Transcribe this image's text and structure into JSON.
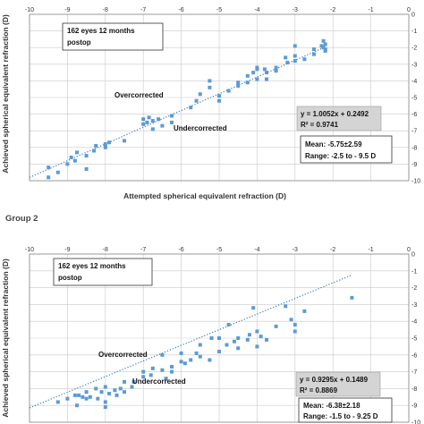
{
  "page": {
    "group_label": "Group 2"
  },
  "colors": {
    "points": "#5b9bd5",
    "trend": "#3a78b8",
    "grid": "#c9c9c9",
    "eq_box": "#d4d4d4"
  },
  "chart_data": [
    {
      "type": "scatter",
      "xlabel": "Attempted spherical equivalent refraction (D)",
      "ylabel": "Achieved spherical equivalent refraction (D)",
      "xlim": [
        -10,
        0
      ],
      "ylim": [
        -10,
        0
      ],
      "xticks": [
        "-10",
        "-9",
        "-8",
        "-7",
        "-6",
        "-5",
        "-4",
        "-3",
        "-2",
        "-1",
        "0"
      ],
      "yticks": [
        "0",
        "-1",
        "-2",
        "-3",
        "-4",
        "-5",
        "-6",
        "-7",
        "-8",
        "-9",
        "-10"
      ],
      "grid": true,
      "annotations": {
        "header_line1": "162 eyes 12 months",
        "header_line2": "postop",
        "over": "Overcorrected",
        "under": "Undercorrected",
        "eq": "y = 1.0052x + 0.2492",
        "r2": "R² = 0.9741",
        "mean": "Mean: -5.75±2.59",
        "range": "Range: -2.5 to - 9.5 D"
      },
      "trendline": {
        "slope": 1.0052,
        "intercept": 0.2492,
        "x_range": [
          -10,
          -2.2
        ]
      },
      "points": [
        [
          -9.5,
          -9.2
        ],
        [
          -9.5,
          -9.8
        ],
        [
          -9.25,
          -9.5
        ],
        [
          -9.0,
          -9.0
        ],
        [
          -8.9,
          -8.6
        ],
        [
          -8.8,
          -8.8
        ],
        [
          -8.75,
          -8.3
        ],
        [
          -8.5,
          -8.5
        ],
        [
          -8.5,
          -9.3
        ],
        [
          -8.3,
          -8.2
        ],
        [
          -8.25,
          -7.9
        ],
        [
          -8.0,
          -8.0
        ],
        [
          -8.0,
          -7.8
        ],
        [
          -7.9,
          -7.7
        ],
        [
          -7.5,
          -7.6
        ],
        [
          -7.0,
          -6.3
        ],
        [
          -7.0,
          -6.6
        ],
        [
          -6.9,
          -6.5
        ],
        [
          -6.85,
          -6.2
        ],
        [
          -6.75,
          -6.4
        ],
        [
          -6.75,
          -6.9
        ],
        [
          -6.6,
          -6.3
        ],
        [
          -6.5,
          -6.7
        ],
        [
          -6.25,
          -6.5
        ],
        [
          -6.25,
          -6.1
        ],
        [
          -5.75,
          -5.6
        ],
        [
          -5.6,
          -5.2
        ],
        [
          -5.5,
          -4.8
        ],
        [
          -5.25,
          -4.0
        ],
        [
          -5.25,
          -4.4
        ],
        [
          -5.0,
          -4.9
        ],
        [
          -5.0,
          -5.2
        ],
        [
          -4.75,
          -4.6
        ],
        [
          -4.5,
          -4.3
        ],
        [
          -4.5,
          -4.1
        ],
        [
          -4.25,
          -4.1
        ],
        [
          -4.25,
          -3.7
        ],
        [
          -4.1,
          -3.5
        ],
        [
          -4.0,
          -3.2
        ],
        [
          -4.0,
          -3.9
        ],
        [
          -4.0,
          -3.3
        ],
        [
          -3.8,
          -3.3
        ],
        [
          -3.75,
          -3.9
        ],
        [
          -3.75,
          -3.5
        ],
        [
          -3.5,
          -3.4
        ],
        [
          -3.5,
          -3.2
        ],
        [
          -3.25,
          -2.6
        ],
        [
          -3.2,
          -2.9
        ],
        [
          -3.0,
          -2.8
        ],
        [
          -3.0,
          -1.9
        ],
        [
          -3.0,
          -2.5
        ],
        [
          -2.75,
          -2.7
        ],
        [
          -2.5,
          -2.1
        ],
        [
          -2.5,
          -2.4
        ],
        [
          -2.3,
          -1.9
        ],
        [
          -2.25,
          -2.0
        ],
        [
          -2.25,
          -1.6
        ],
        [
          -2.2,
          -2.2
        ],
        [
          -2.2,
          -2.1
        ],
        [
          -2.2,
          -1.8
        ]
      ]
    },
    {
      "type": "scatter",
      "xlabel": "",
      "ylabel": "Achieved spherical equivalent refraction (D)",
      "xlim": [
        -10,
        0
      ],
      "ylim": [
        -10,
        0
      ],
      "xticks": [
        "-10",
        "-9",
        "-8",
        "-7",
        "-6",
        "-5",
        "-4",
        "-3",
        "-2",
        "-1",
        "0"
      ],
      "yticks": [
        "0",
        "-1",
        "-2",
        "-3",
        "-4",
        "-5",
        "-6",
        "-7",
        "-8",
        "-9",
        "-10"
      ],
      "grid": true,
      "annotations": {
        "header_line1": "162 eyes 12 months",
        "header_line2": "postop",
        "over": "Overcorrected",
        "under": "Undercorrected",
        "eq": "y = 0.9295x + 0.1489",
        "r2": "R² = 0.8869",
        "mean": "Mean: -6.38±2.18",
        "range": "Range: -1.5 to - 9.25 D"
      },
      "trendline": {
        "slope": 0.9295,
        "intercept": 0.1489,
        "x_range": [
          -10,
          -1.5
        ]
      },
      "points": [
        [
          -9.25,
          -8.8
        ],
        [
          -9.0,
          -8.6
        ],
        [
          -8.8,
          -8.4
        ],
        [
          -8.75,
          -9.0
        ],
        [
          -8.7,
          -8.4
        ],
        [
          -8.6,
          -8.5
        ],
        [
          -8.5,
          -8.2
        ],
        [
          -8.5,
          -8.6
        ],
        [
          -8.4,
          -8.5
        ],
        [
          -8.25,
          -8.0
        ],
        [
          -8.2,
          -8.6
        ],
        [
          -8.1,
          -8.2
        ],
        [
          -8.0,
          -7.9
        ],
        [
          -8.0,
          -8.8
        ],
        [
          -8.0,
          -9.1
        ],
        [
          -7.9,
          -8.3
        ],
        [
          -7.75,
          -8.1
        ],
        [
          -7.7,
          -8.4
        ],
        [
          -7.6,
          -8.0
        ],
        [
          -7.5,
          -7.6
        ],
        [
          -7.5,
          -8.2
        ],
        [
          -7.3,
          -7.9
        ],
        [
          -7.25,
          -7.6
        ],
        [
          -7.0,
          -7.0
        ],
        [
          -7.0,
          -7.3
        ],
        [
          -6.8,
          -7.2
        ],
        [
          -6.75,
          -6.8
        ],
        [
          -6.5,
          -6.9
        ],
        [
          -6.5,
          -6.0
        ],
        [
          -6.4,
          -7.4
        ],
        [
          -6.25,
          -6.7
        ],
        [
          -6.25,
          -7.0
        ],
        [
          -6.0,
          -6.4
        ],
        [
          -6.0,
          -5.9
        ],
        [
          -5.9,
          -6.5
        ],
        [
          -5.75,
          -6.3
        ],
        [
          -5.6,
          -5.9
        ],
        [
          -5.5,
          -5.4
        ],
        [
          -5.5,
          -6.1
        ],
        [
          -5.25,
          -6.3
        ],
        [
          -5.2,
          -5.0
        ],
        [
          -5.0,
          -5.0
        ],
        [
          -5.0,
          -5.8
        ],
        [
          -4.8,
          -5.4
        ],
        [
          -4.75,
          -4.2
        ],
        [
          -4.6,
          -5.2
        ],
        [
          -4.5,
          -5.6
        ],
        [
          -4.5,
          -5.0
        ],
        [
          -4.25,
          -5.1
        ],
        [
          -4.2,
          -4.8
        ],
        [
          -4.1,
          -3.2
        ],
        [
          -4.0,
          -5.5
        ],
        [
          -4.0,
          -4.6
        ],
        [
          -3.9,
          -4.9
        ],
        [
          -3.75,
          -5.1
        ],
        [
          -3.5,
          -4.3
        ],
        [
          -3.25,
          -3.1
        ],
        [
          -3.1,
          -3.9
        ],
        [
          -3.0,
          -4.6
        ],
        [
          -3.0,
          -4.2
        ],
        [
          -2.75,
          -3.4
        ],
        [
          -1.5,
          -2.6
        ]
      ]
    }
  ]
}
